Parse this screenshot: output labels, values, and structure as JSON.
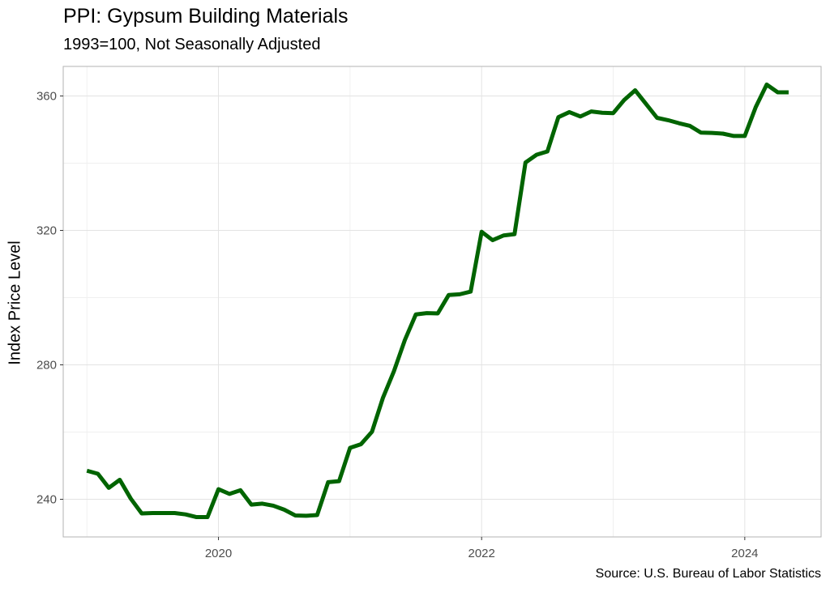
{
  "chart_data": {
    "type": "line",
    "title": "PPI: Gypsum Building Materials",
    "subtitle": "1993=100, Not Seasonally Adjusted",
    "caption": "Source: U.S. Bureau of Labor Statistics",
    "xlabel": "",
    "ylabel": "Index Price Level",
    "xlim": [
      2018.82,
      2024.58
    ],
    "ylim": [
      228.8,
      368.8
    ],
    "x_ticks": [
      2020,
      2022,
      2024
    ],
    "x_tick_labels": [
      "2020",
      "2022",
      "2024"
    ],
    "y_ticks": [
      240,
      280,
      320,
      360
    ],
    "y_tick_labels": [
      "240",
      "280",
      "320",
      "360"
    ],
    "grid": true,
    "legend": "none",
    "line_color": "#006400",
    "series": [
      {
        "x": [
          "2019-01",
          "2019-02",
          "2019-03",
          "2019-04",
          "2019-05",
          "2019-06",
          "2019-07",
          "2019-08",
          "2019-09",
          "2019-10",
          "2019-11",
          "2019-12",
          "2020-01",
          "2020-02",
          "2020-03",
          "2020-04",
          "2020-05",
          "2020-06",
          "2020-07",
          "2020-08",
          "2020-09",
          "2020-10",
          "2020-11",
          "2020-12",
          "2021-01",
          "2021-02",
          "2021-03",
          "2021-04",
          "2021-05",
          "2021-06",
          "2021-07",
          "2021-08",
          "2021-09",
          "2021-10",
          "2021-11",
          "2021-12",
          "2022-01",
          "2022-02",
          "2022-03",
          "2022-04",
          "2022-05",
          "2022-06",
          "2022-07",
          "2022-08",
          "2022-09",
          "2022-10",
          "2022-11",
          "2022-12",
          "2023-01",
          "2023-02",
          "2023-03",
          "2023-04",
          "2023-05",
          "2023-06",
          "2023-07",
          "2023-08",
          "2023-09",
          "2023-10",
          "2023-11",
          "2023-12",
          "2024-01",
          "2024-02",
          "2024-03",
          "2024-04",
          "2024-05"
        ],
        "values": [
          248.5,
          247.6,
          243.4,
          245.8,
          240.2,
          235.8,
          235.9,
          235.9,
          235.9,
          235.5,
          234.7,
          234.7,
          243.0,
          241.6,
          242.7,
          238.4,
          238.7,
          238.1,
          236.9,
          235.2,
          235.1,
          235.3,
          245.1,
          245.4,
          255.3,
          256.4,
          260.1,
          270.2,
          278.1,
          287.4,
          295.0,
          295.4,
          295.3,
          300.8,
          301.0,
          301.8,
          319.6,
          317.1,
          318.5,
          318.9,
          340.2,
          342.5,
          343.5,
          353.7,
          355.2,
          353.9,
          355.4,
          355.0,
          354.9,
          358.8,
          361.7,
          357.6,
          353.5,
          352.8,
          351.9,
          351.1,
          349.1,
          349.0,
          348.8,
          348.1,
          348.1,
          356.7,
          363.4,
          361.1,
          361.1
        ]
      }
    ]
  }
}
